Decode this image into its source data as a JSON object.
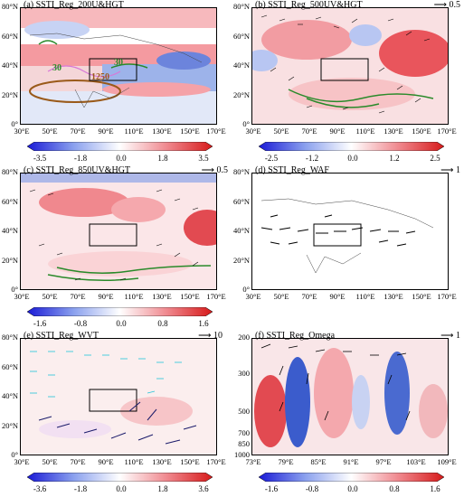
{
  "panels": [
    {
      "id": "a",
      "title": "(a) SSTI_Reg_200U&HGT",
      "ref_arrow": "",
      "y_labels": [
        "80°N",
        "60°N",
        "40°N",
        "20°N",
        "0°"
      ],
      "x_labels": [
        "30°E",
        "50°E",
        "70°E",
        "90°E",
        "110°E",
        "130°E",
        "150°E",
        "170°E"
      ],
      "colorbar_ticks": [
        "-3.5",
        "-1.8",
        "0.0",
        "1.8",
        "3.5"
      ],
      "contour_labels": [
        "30",
        "30",
        "1250"
      ]
    },
    {
      "id": "b",
      "title": "(b) SSTI_Reg_500UV&HGT",
      "ref_arrow": "0.5",
      "y_labels": [
        "80°N",
        "60°N",
        "40°N",
        "20°N",
        "0°"
      ],
      "x_labels": [
        "30°E",
        "50°E",
        "70°E",
        "90°E",
        "110°E",
        "130°E",
        "150°E",
        "170°E"
      ],
      "colorbar_ticks": [
        "-2.5",
        "-1.2",
        "0.0",
        "1.2",
        "2.5"
      ]
    },
    {
      "id": "c",
      "title": "(c) SSTI_Reg_850UV&HGT",
      "ref_arrow": "0.5",
      "y_labels": [
        "80°N",
        "60°N",
        "40°N",
        "20°N",
        "0°"
      ],
      "x_labels": [
        "30°E",
        "50°E",
        "70°E",
        "90°E",
        "110°E",
        "130°E",
        "150°E",
        "170°E"
      ],
      "colorbar_ticks": [
        "-1.6",
        "-0.8",
        "0.0",
        "0.8",
        "1.6"
      ]
    },
    {
      "id": "d",
      "title": "(d) SSTI_Reg_WAF",
      "ref_arrow": "1",
      "y_labels": [
        "80°N",
        "60°N",
        "40°N",
        "20°N",
        "0°"
      ],
      "x_labels": [
        "30°E",
        "50°E",
        "70°E",
        "90°E",
        "110°E",
        "130°E",
        "150°E",
        "170°E"
      ],
      "colorbar_ticks": []
    },
    {
      "id": "e",
      "title": "(e) SSTI_Reg_WVT",
      "ref_arrow": "10",
      "y_labels": [
        "80°N",
        "60°N",
        "40°N",
        "20°N",
        "0°"
      ],
      "x_labels": [
        "30°E",
        "50°E",
        "70°E",
        "90°E",
        "110°E",
        "130°E",
        "150°E",
        "170°E"
      ],
      "colorbar_ticks": [
        "-3.6",
        "-1.8",
        "0.0",
        "1.8",
        "3.6"
      ]
    },
    {
      "id": "f",
      "title": "(f) SSTI_Reg_Omega",
      "ref_arrow": "1",
      "y_labels": [
        "200",
        "300",
        "500",
        "700",
        "850",
        "1000"
      ],
      "x_labels": [
        "73°E",
        "79°E",
        "85°E",
        "91°E",
        "97°E",
        "103°E",
        "109°E"
      ],
      "colorbar_ticks": [
        "-1.6",
        "-0.8",
        "0.0",
        "0.8",
        "1.6"
      ]
    }
  ],
  "colors": {
    "red": "#e8383d",
    "blue": "#3b5ccc",
    "contour_green": "#2a8a2a",
    "contour_brown": "#9a5a1a",
    "contour_pink": "#d878d8",
    "wvt_cyan": "#22c4d8",
    "wvt_navy": "#1a1a6a"
  }
}
